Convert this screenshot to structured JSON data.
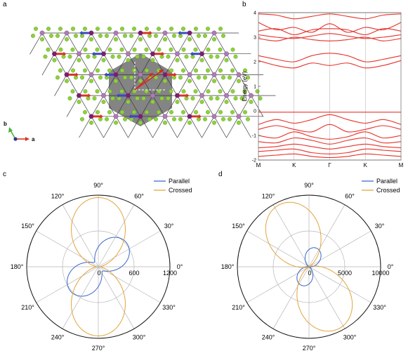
{
  "panels": {
    "a": {
      "letter": "a",
      "axis_b": "b",
      "axis_a": "a"
    },
    "b": {
      "letter": "b"
    },
    "c": {
      "letter": "c"
    },
    "d": {
      "letter": "d"
    }
  },
  "colors": {
    "band": "#e8312a",
    "parallel": "#3a66c8",
    "crossed": "#e2a43a",
    "hexagon": "#6e6e6e",
    "atom_green": "#8ed13a",
    "atom_purple": "#b07ab8",
    "atom_magenta": "#7a1f6e",
    "spin_red": "#d8352a",
    "spin_blue": "#3b48c4"
  },
  "chart_data": [
    {
      "panel": "b",
      "type": "line",
      "ylabel": "Energy (eV)",
      "ylim": [
        -2,
        4
      ],
      "yticks": [
        "-2",
        "-1",
        "0",
        "1",
        "2",
        "3",
        "4"
      ],
      "kpath": [
        "M",
        "K",
        "Γ",
        "K",
        "M"
      ],
      "series": [
        {
          "x": [
            0,
            0.5,
            1,
            1.5,
            2,
            2.5,
            3,
            3.5,
            4
          ],
          "values": [
            3.95,
            3.9,
            3.75,
            3.85,
            3.95,
            3.85,
            3.75,
            3.9,
            3.95
          ]
        },
        {
          "x": [
            0,
            0.5,
            1,
            1.5,
            2,
            2.5,
            3,
            3.5,
            4
          ],
          "values": [
            3.6,
            3.3,
            3.4,
            3.2,
            3.55,
            3.2,
            3.4,
            3.3,
            3.6
          ]
        },
        {
          "x": [
            0,
            0.5,
            1,
            1.5,
            2,
            2.5,
            3,
            3.5,
            4
          ],
          "values": [
            3.25,
            3.35,
            3.1,
            3.3,
            3.35,
            3.3,
            3.1,
            3.35,
            3.25
          ]
        },
        {
          "x": [
            0,
            0.5,
            1,
            1.5,
            2,
            2.5,
            3,
            3.5,
            4
          ],
          "values": [
            3.1,
            3.0,
            2.95,
            3.05,
            3.15,
            3.05,
            2.95,
            3.0,
            3.1
          ]
        },
        {
          "x": [
            0,
            0.5,
            1,
            1.5,
            2,
            2.5,
            3,
            3.5,
            4
          ],
          "values": [
            2.95,
            2.85,
            3.0,
            2.9,
            2.85,
            2.9,
            3.0,
            2.85,
            2.95
          ]
        },
        {
          "x": [
            0,
            0.5,
            1,
            1.5,
            2,
            2.5,
            3,
            3.5,
            4
          ],
          "values": [
            2.25,
            2.1,
            2.0,
            2.25,
            2.35,
            2.25,
            2.0,
            2.1,
            2.25
          ]
        },
        {
          "x": [
            0,
            0.5,
            1,
            1.5,
            2,
            2.5,
            3,
            3.5,
            4
          ],
          "values": [
            2.05,
            1.85,
            1.75,
            1.95,
            1.85,
            1.95,
            1.75,
            1.85,
            2.05
          ]
        },
        {
          "x": [
            0,
            0.5,
            1,
            1.5,
            2,
            2.5,
            3,
            3.5,
            4
          ],
          "values": [
            -0.05,
            -0.05,
            -0.05,
            -0.05,
            -0.05,
            -0.05,
            -0.05,
            -0.05,
            -0.05
          ]
        },
        {
          "x": [
            0,
            0.5,
            1,
            1.5,
            2,
            2.5,
            3,
            3.5,
            4
          ],
          "values": [
            -0.55,
            -0.35,
            -0.5,
            -0.35,
            -0.15,
            -0.35,
            -0.5,
            -0.35,
            -0.55
          ]
        },
        {
          "x": [
            0,
            0.5,
            1,
            1.5,
            2,
            2.5,
            3,
            3.5,
            4
          ],
          "values": [
            -0.75,
            -0.6,
            -0.75,
            -0.85,
            -0.55,
            -0.85,
            -0.75,
            -0.6,
            -0.75
          ]
        },
        {
          "x": [
            0,
            0.5,
            1,
            1.5,
            2,
            2.5,
            3,
            3.5,
            4
          ],
          "values": [
            -1.0,
            -1.1,
            -0.85,
            -1.05,
            -1.15,
            -1.05,
            -0.85,
            -1.1,
            -1.0
          ]
        },
        {
          "x": [
            0,
            0.5,
            1,
            1.5,
            2,
            2.5,
            3,
            3.5,
            4
          ],
          "values": [
            -1.25,
            -1.3,
            -1.1,
            -1.2,
            -1.35,
            -1.2,
            -1.1,
            -1.3,
            -1.25
          ]
        },
        {
          "x": [
            0,
            0.5,
            1,
            1.5,
            2,
            2.5,
            3,
            3.5,
            4
          ],
          "values": [
            -1.5,
            -1.45,
            -1.35,
            -1.45,
            -1.55,
            -1.45,
            -1.35,
            -1.45,
            -1.5
          ]
        },
        {
          "x": [
            0,
            0.5,
            1,
            1.5,
            2,
            2.5,
            3,
            3.5,
            4
          ],
          "values": [
            -1.65,
            -1.6,
            -1.55,
            -1.7,
            -1.75,
            -1.7,
            -1.55,
            -1.6,
            -1.65
          ]
        },
        {
          "x": [
            0,
            0.5,
            1,
            1.5,
            2,
            2.5,
            3,
            3.5,
            4
          ],
          "values": [
            -1.85,
            -1.8,
            -1.75,
            -1.85,
            -1.9,
            -1.85,
            -1.75,
            -1.8,
            -1.85
          ]
        }
      ]
    },
    {
      "panel": "c",
      "type": "polar",
      "angle_labels": [
        "0°",
        "30°",
        "60°",
        "90°",
        "120°",
        "150°",
        "180°",
        "210°",
        "240°",
        "270°",
        "300°",
        "330°"
      ],
      "radial_ticks": [
        0,
        600,
        1200
      ],
      "radial_labels": [
        "0",
        "600",
        "1200"
      ],
      "rmax": 1200,
      "series": [
        {
          "name": "Parallel",
          "a": 100,
          "b": 520,
          "phi_deg": 42
        },
        {
          "name": "Crossed",
          "a": 30,
          "b": 1130,
          "phi_deg": 90
        }
      ]
    },
    {
      "panel": "d",
      "type": "polar",
      "angle_labels": [
        "0°",
        "30°",
        "60°",
        "90°",
        "120°",
        "150°",
        "180°",
        "210°",
        "240°",
        "270°",
        "300°",
        "330°"
      ],
      "radial_ticks": [
        0,
        5000,
        10000
      ],
      "radial_labels": [
        "0",
        "5000",
        "10000"
      ],
      "rmax": 10000,
      "series": [
        {
          "name": "Parallel",
          "a": 0,
          "b": 2800,
          "phi_deg": 68
        },
        {
          "name": "Crossed",
          "a": 0,
          "b": 9600,
          "phi_deg": 115
        }
      ]
    }
  ]
}
